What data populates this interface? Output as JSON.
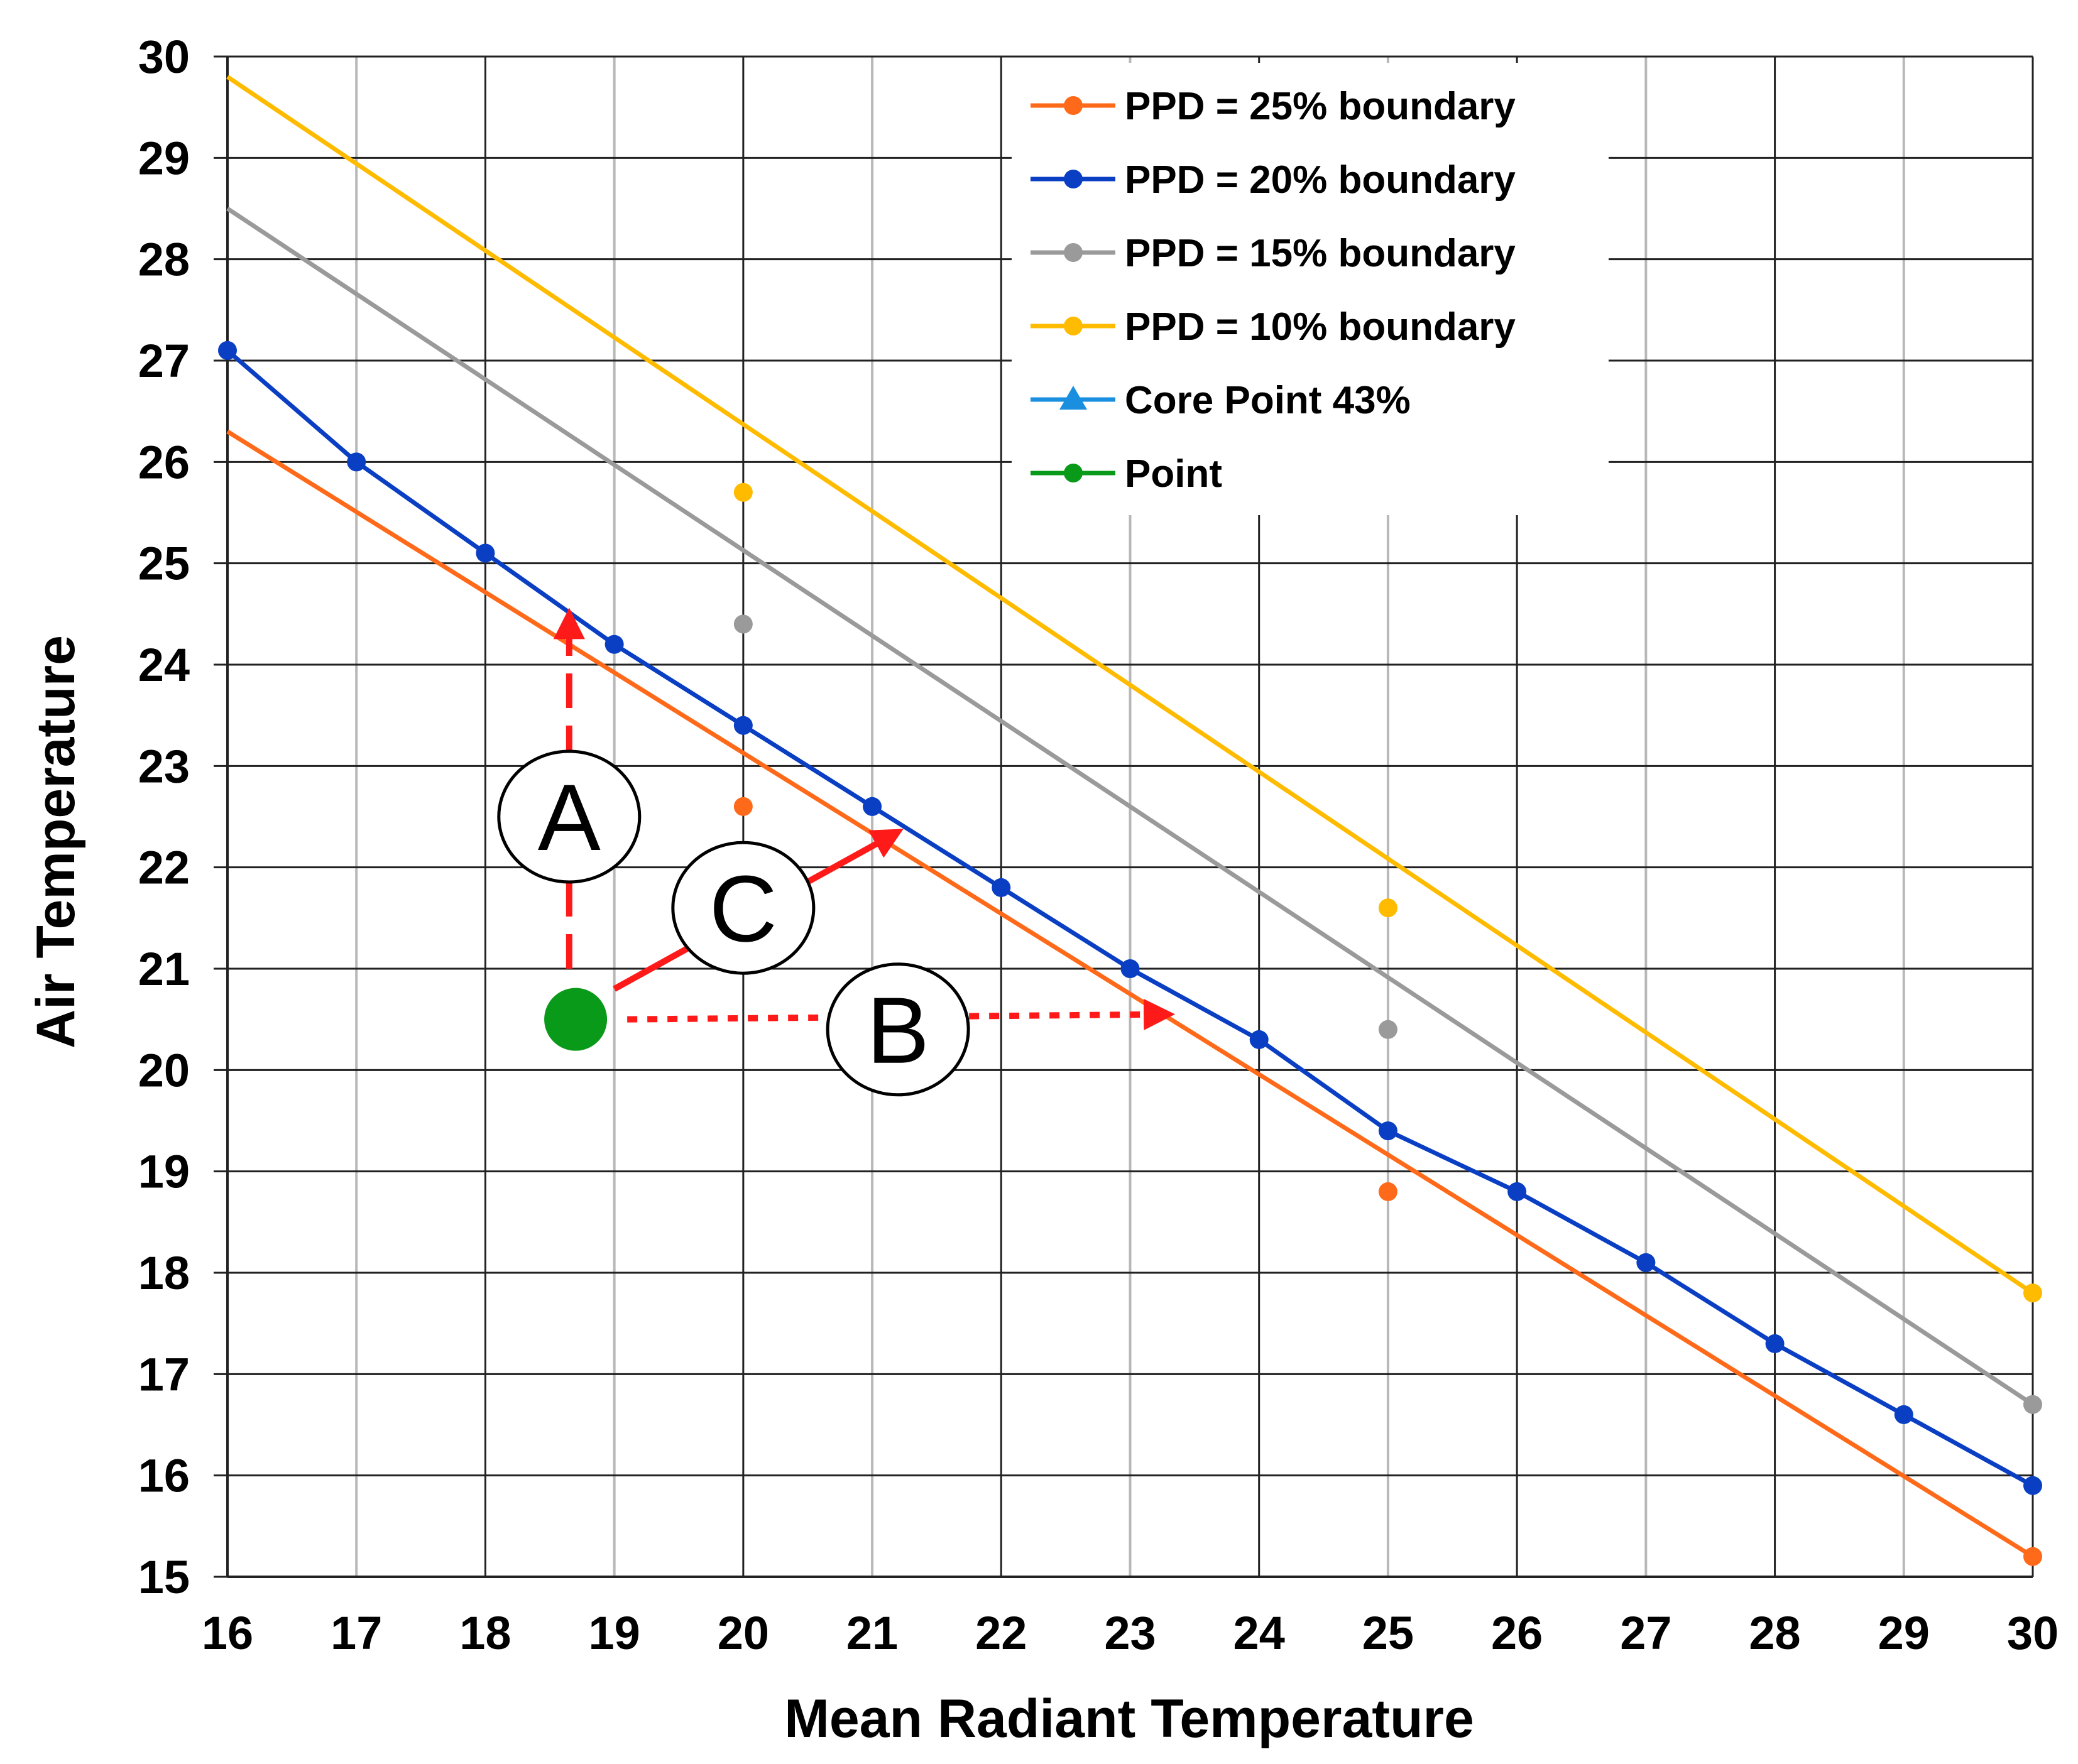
{
  "chart_data": {
    "type": "line",
    "xlabel": "Mean Radiant Temperature",
    "ylabel": "Air Temperature",
    "xlim": [
      16,
      30
    ],
    "ylim": [
      15,
      30
    ],
    "x_ticks": [
      "16",
      "17",
      "18",
      "19",
      "20",
      "21",
      "22",
      "23",
      "24",
      "25",
      "26",
      "27",
      "28",
      "29",
      "30"
    ],
    "y_ticks": [
      "15",
      "16",
      "17",
      "18",
      "19",
      "20",
      "21",
      "22",
      "23",
      "24",
      "25",
      "26",
      "27",
      "28",
      "29",
      "30"
    ],
    "grid": true,
    "legend_position": "top-right",
    "series": [
      {
        "name": "PPD = 25% boundary",
        "color": "#ff6a1a",
        "line": [
          [
            16,
            26.3
          ],
          [
            30,
            15.2
          ]
        ],
        "markers": [
          [
            20,
            22.6
          ],
          [
            25,
            18.8
          ],
          [
            30,
            15.2
          ]
        ]
      },
      {
        "name": "PPD = 20% boundary",
        "color": "#0a3fc4",
        "line": [
          [
            16,
            27.1
          ],
          [
            17,
            26.0
          ],
          [
            18,
            25.1
          ],
          [
            19,
            24.2
          ],
          [
            20,
            23.4
          ],
          [
            21,
            22.6
          ],
          [
            22,
            21.8
          ],
          [
            23,
            21.0
          ],
          [
            24,
            20.3
          ],
          [
            25,
            19.4
          ],
          [
            26,
            18.8
          ],
          [
            27,
            18.1
          ],
          [
            28,
            17.3
          ],
          [
            29,
            16.6
          ],
          [
            30,
            15.9
          ]
        ],
        "markers": [
          [
            16,
            27.1
          ],
          [
            17,
            26.0
          ],
          [
            18,
            25.1
          ],
          [
            19,
            24.2
          ],
          [
            20,
            23.4
          ],
          [
            21,
            22.6
          ],
          [
            22,
            21.8
          ],
          [
            23,
            21.0
          ],
          [
            24,
            20.3
          ],
          [
            25,
            19.4
          ],
          [
            26,
            18.8
          ],
          [
            27,
            18.1
          ],
          [
            28,
            17.3
          ],
          [
            29,
            16.6
          ],
          [
            30,
            15.9
          ]
        ]
      },
      {
        "name": "PPD = 15% boundary",
        "color": "#9a9a9a",
        "line": [
          [
            16,
            28.5
          ],
          [
            30,
            16.7
          ]
        ],
        "markers": [
          [
            20,
            24.4
          ],
          [
            25,
            20.4
          ],
          [
            30,
            16.7
          ]
        ]
      },
      {
        "name": "PPD = 10% boundary",
        "color": "#ffbb00",
        "line": [
          [
            16,
            29.8
          ],
          [
            30,
            17.8
          ]
        ],
        "markers": [
          [
            20,
            25.7
          ],
          [
            25,
            21.6
          ],
          [
            30,
            17.8
          ]
        ]
      },
      {
        "name": "Core Point 43%",
        "color": "#1a8fe0",
        "line": [],
        "markers": []
      },
      {
        "name": "Point",
        "color": "#0a9a1a",
        "line": [],
        "markers": [
          [
            18.7,
            20.5
          ]
        ]
      }
    ],
    "annotations": [
      {
        "label": "A",
        "x": 18.65,
        "y": 22.5,
        "arrow_from": [
          18.65,
          21.0
        ],
        "arrow_to": [
          18.65,
          24.5
        ],
        "style": "dashed",
        "color": "#ff1a1a"
      },
      {
        "label": "B",
        "x": 21.2,
        "y": 20.4,
        "arrow_from": [
          19.1,
          20.5
        ],
        "arrow_to": [
          23.3,
          20.55
        ],
        "style": "dotted",
        "color": "#ff1a1a"
      },
      {
        "label": "C",
        "x": 20.0,
        "y": 21.6,
        "arrow_from": [
          19.0,
          20.8
        ],
        "arrow_to": [
          21.2,
          22.35
        ],
        "style": "solid",
        "color": "#ff1a1a"
      }
    ]
  }
}
